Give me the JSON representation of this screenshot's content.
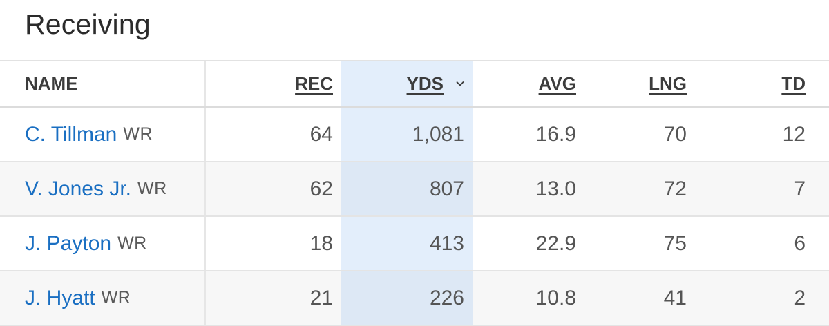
{
  "title": "Receiving",
  "columns": {
    "name": "NAME",
    "rec": "REC",
    "yds": "YDS",
    "avg": "AVG",
    "lng": "LNG",
    "td": "TD"
  },
  "sorted_column": "YDS",
  "sort_icon": "chevron-down-icon",
  "colors": {
    "link": "#1a6fc2",
    "sorted_column_bg": "#e3eefb"
  },
  "rows": [
    {
      "name": "C. Tillman",
      "pos": "WR",
      "rec": "64",
      "yds": "1,081",
      "avg": "16.9",
      "lng": "70",
      "td": "12"
    },
    {
      "name": "V. Jones Jr.",
      "pos": "WR",
      "rec": "62",
      "yds": "807",
      "avg": "13.0",
      "lng": "72",
      "td": "7"
    },
    {
      "name": "J. Payton",
      "pos": "WR",
      "rec": "18",
      "yds": "413",
      "avg": "22.9",
      "lng": "75",
      "td": "6"
    },
    {
      "name": "J. Hyatt",
      "pos": "WR",
      "rec": "21",
      "yds": "226",
      "avg": "10.8",
      "lng": "41",
      "td": "2"
    }
  ]
}
